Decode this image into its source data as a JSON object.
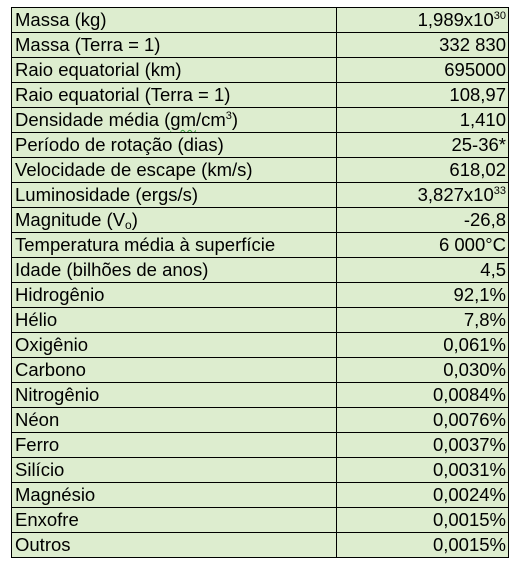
{
  "rows": [
    {
      "label": "Massa (kg)",
      "value_base": "1,989x10",
      "value_exp": "30"
    },
    {
      "label": "Massa (Terra = 1)",
      "value_base": "332 830",
      "value_exp": ""
    },
    {
      "label": "Raio equatorial (km)",
      "value_base": "695000",
      "value_exp": ""
    },
    {
      "label": "Raio equatorial (Terra = 1)",
      "value_base": "108,97",
      "value_exp": ""
    },
    {
      "label_pre": "Densidade média (",
      "label_sq": "gm",
      "label_mid": "/cm",
      "label_sup": "3",
      "label_post": ")",
      "value_base": "1,410",
      "value_exp": ""
    },
    {
      "label": "Período de rotação (dias)",
      "value_base": "25-36*",
      "value_exp": ""
    },
    {
      "label": "Velocidade de escape (km/s)",
      "value_base": "618,02",
      "value_exp": ""
    },
    {
      "label": "Luminosidade (ergs/s)",
      "value_base": "3,827x10",
      "value_exp": "33"
    },
    {
      "label_pre": "Magnitude (V",
      "label_sub": "o",
      "label_post": ")",
      "value_base": "-26,8",
      "value_exp": ""
    },
    {
      "label": "Temperatura média à superfície",
      "value_base": "6 000°C",
      "value_exp": ""
    },
    {
      "label": "Idade (bilhões de anos)",
      "value_base": "4,5",
      "value_exp": ""
    },
    {
      "label": "Hidrogênio",
      "value_base": "92,1%",
      "value_exp": ""
    },
    {
      "label": "Hélio",
      "value_base": "7,8%",
      "value_exp": ""
    },
    {
      "label": "Oxigênio",
      "value_base": "0,061%",
      "value_exp": ""
    },
    {
      "label": "Carbono",
      "value_base": "0,030%",
      "value_exp": ""
    },
    {
      "label": "Nitrogênio",
      "value_base": "0,0084%",
      "value_exp": ""
    },
    {
      "label": "Néon",
      "value_base": "0,0076%",
      "value_exp": ""
    },
    {
      "label": "Ferro",
      "value_base": "0,0037%",
      "value_exp": ""
    },
    {
      "label": "Silício",
      "value_base": "0,0031%",
      "value_exp": ""
    },
    {
      "label": "Magnésio",
      "value_base": "0,0024%",
      "value_exp": ""
    },
    {
      "label": "Enxofre",
      "value_base": "0,0015%",
      "value_exp": ""
    },
    {
      "label": "Outros",
      "value_base": "0,0015%",
      "value_exp": ""
    }
  ],
  "colors": {
    "cell_background": "#ddedcf",
    "border": "#000000",
    "text": "#000000"
  }
}
